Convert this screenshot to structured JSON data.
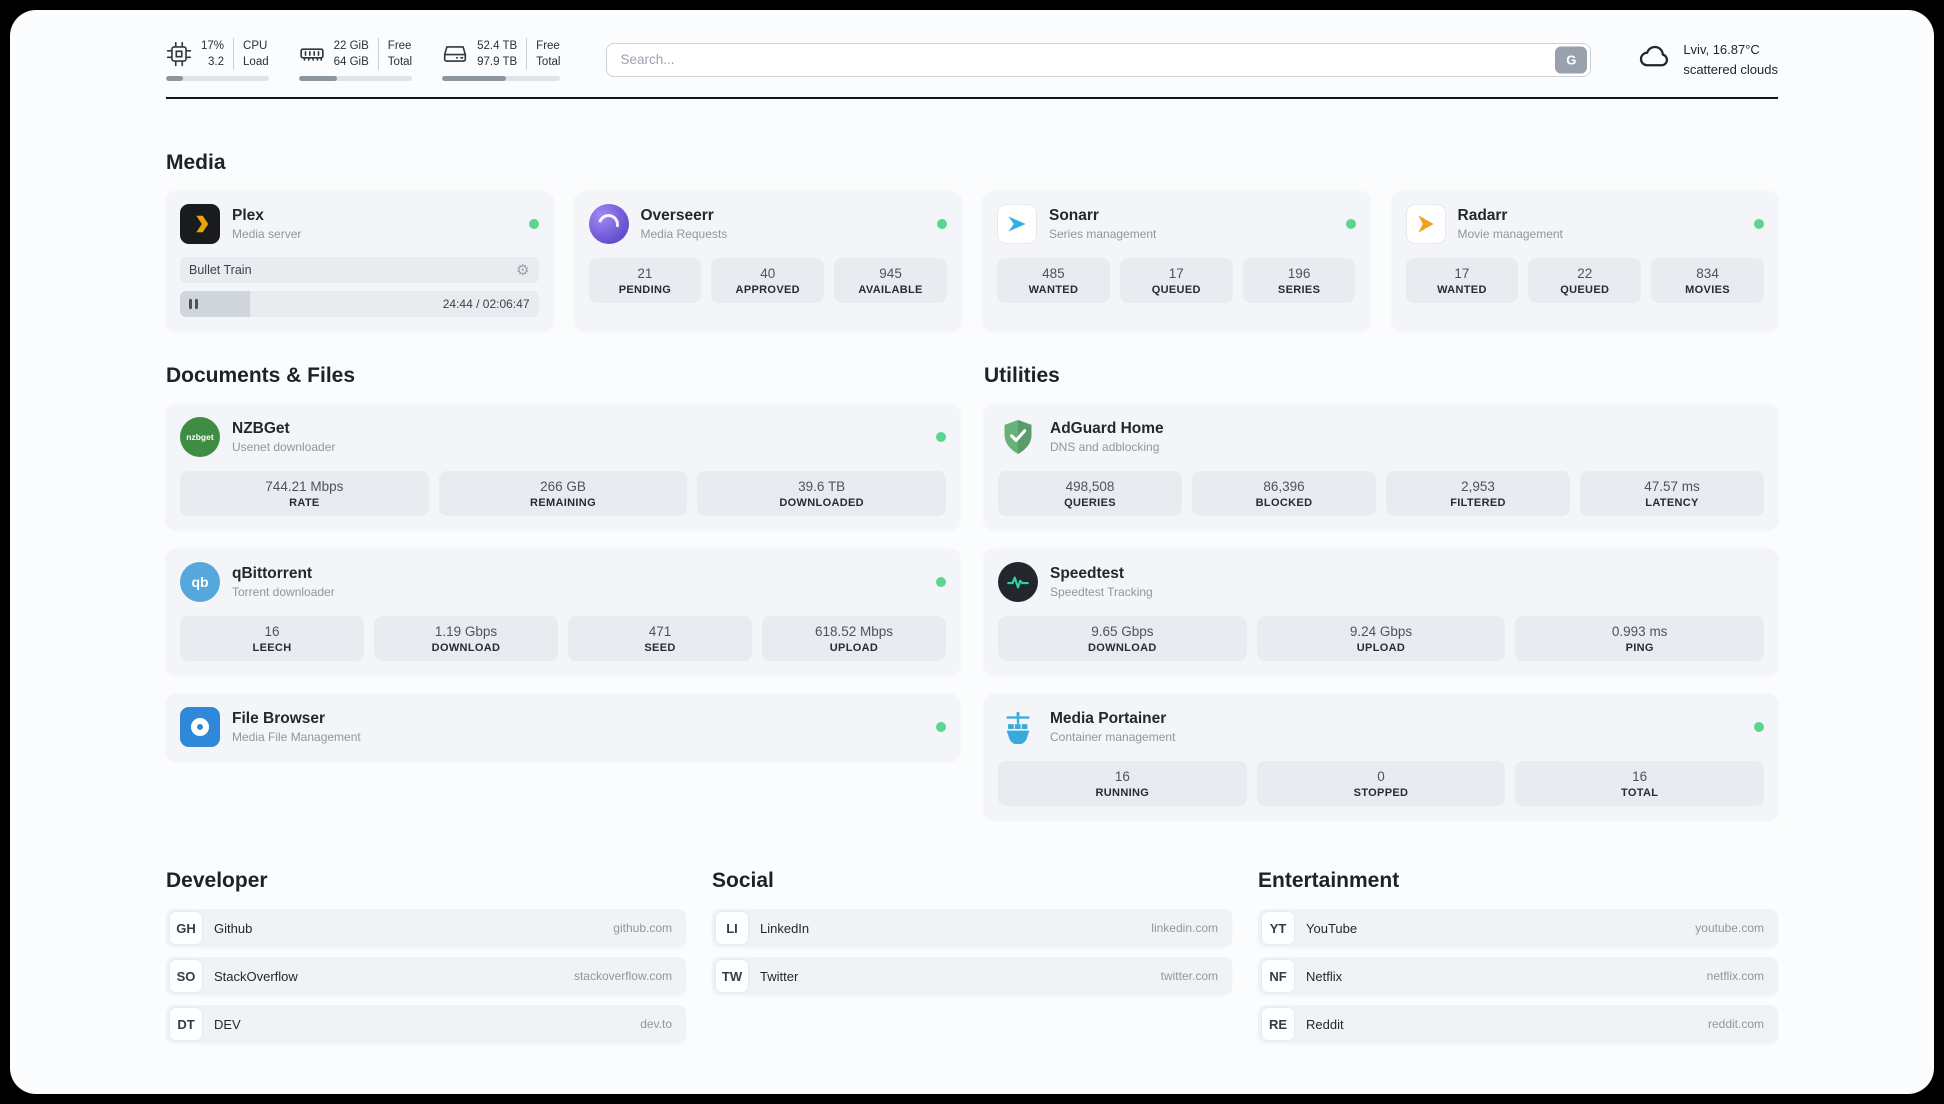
{
  "colors": {
    "status_green": "#5bd68f",
    "plex_yellow": "#e8a50b",
    "sonarr_blue": "#33b1e0",
    "radarr_orange": "#f0a11e",
    "nzbget_green": "#3f8c43",
    "qbittorrent_blue": "#56a8dc",
    "filebrowser_blue": "#2f89d8",
    "adguard_green": "#67b279",
    "speedtest_dark": "#22272e",
    "speedtest_green": "#2dd4a0",
    "portainer_blue": "#39a9dc",
    "overseerr_purple": "#6e58d8"
  },
  "topbar": {
    "monitors": [
      {
        "value": "17%",
        "sub": "3.2",
        "label_top": "CPU",
        "label_bottom": "Load",
        "progress": 17
      },
      {
        "value": "22 GiB",
        "sub": "64 GiB",
        "label_top": "Free",
        "label_bottom": "Total",
        "progress": 34
      },
      {
        "value": "52.4 TB",
        "sub": "97.9 TB",
        "label_top": "Free",
        "label_bottom": "Total",
        "progress": 54
      }
    ],
    "search": {
      "placeholder": "Search...",
      "button_label": "G"
    },
    "weather": {
      "location": "Lviv, 16.87°C",
      "condition": "scattered clouds"
    }
  },
  "sections": {
    "media": {
      "title": "Media",
      "plex": {
        "title": "Plex",
        "subtitle": "Media server",
        "now_playing": "Bullet Train",
        "time": "24:44 / 02:06:47",
        "progress": 19.5
      },
      "overseerr": {
        "title": "Overseerr",
        "subtitle": "Media Requests",
        "stats": [
          {
            "value": "21",
            "label": "PENDING"
          },
          {
            "value": "40",
            "label": "APPROVED"
          },
          {
            "value": "945",
            "label": "AVAILABLE"
          }
        ]
      },
      "sonarr": {
        "title": "Sonarr",
        "subtitle": "Series management",
        "stats": [
          {
            "value": "485",
            "label": "WANTED"
          },
          {
            "value": "17",
            "label": "QUEUED"
          },
          {
            "value": "196",
            "label": "SERIES"
          }
        ]
      },
      "radarr": {
        "title": "Radarr",
        "subtitle": "Movie management",
        "stats": [
          {
            "value": "17",
            "label": "WANTED"
          },
          {
            "value": "22",
            "label": "QUEUED"
          },
          {
            "value": "834",
            "label": "MOVIES"
          }
        ]
      }
    },
    "documents": {
      "title": "Documents & Files",
      "nzbget": {
        "title": "NZBGet",
        "subtitle": "Usenet downloader",
        "stats": [
          {
            "value": "744.21 Mbps",
            "label": "RATE"
          },
          {
            "value": "266 GB",
            "label": "REMAINING"
          },
          {
            "value": "39.6 TB",
            "label": "DOWNLOADED"
          }
        ]
      },
      "qbittorrent": {
        "title": "qBittorrent",
        "subtitle": "Torrent downloader",
        "stats": [
          {
            "value": "16",
            "label": "LEECH"
          },
          {
            "value": "1.19 Gbps",
            "label": "DOWNLOAD"
          },
          {
            "value": "471",
            "label": "SEED"
          },
          {
            "value": "618.52 Mbps",
            "label": "UPLOAD"
          }
        ]
      },
      "filebrowser": {
        "title": "File Browser",
        "subtitle": "Media File Management"
      }
    },
    "utilities": {
      "title": "Utilities",
      "adguard": {
        "title": "AdGuard Home",
        "subtitle": "DNS and adblocking",
        "stats": [
          {
            "value": "498,508",
            "label": "QUERIES"
          },
          {
            "value": "86,396",
            "label": "BLOCKED"
          },
          {
            "value": "2,953",
            "label": "FILTERED"
          },
          {
            "value": "47.57 ms",
            "label": "LATENCY"
          }
        ]
      },
      "speedtest": {
        "title": "Speedtest",
        "subtitle": "Speedtest Tracking",
        "stats": [
          {
            "value": "9.65 Gbps",
            "label": "DOWNLOAD"
          },
          {
            "value": "9.24 Gbps",
            "label": "UPLOAD"
          },
          {
            "value": "0.993 ms",
            "label": "PING"
          }
        ]
      },
      "portainer": {
        "title": "Media Portainer",
        "subtitle": "Container management",
        "stats": [
          {
            "value": "16",
            "label": "RUNNING"
          },
          {
            "value": "0",
            "label": "STOPPED"
          },
          {
            "value": "16",
            "label": "TOTAL"
          }
        ]
      }
    }
  },
  "bookmarks": [
    {
      "title": "Developer",
      "links": [
        {
          "abbr": "GH",
          "name": "Github",
          "url": "github.com"
        },
        {
          "abbr": "SO",
          "name": "StackOverflow",
          "url": "stackoverflow.com"
        },
        {
          "abbr": "DT",
          "name": "DEV",
          "url": "dev.to"
        }
      ]
    },
    {
      "title": "Social",
      "links": [
        {
          "abbr": "LI",
          "name": "LinkedIn",
          "url": "linkedin.com"
        },
        {
          "abbr": "TW",
          "name": "Twitter",
          "url": "twitter.com"
        }
      ]
    },
    {
      "title": "Entertainment",
      "links": [
        {
          "abbr": "YT",
          "name": "YouTube",
          "url": "youtube.com"
        },
        {
          "abbr": "NF",
          "name": "Netflix",
          "url": "netflix.com"
        },
        {
          "abbr": "RE",
          "name": "Reddit",
          "url": "reddit.com"
        }
      ]
    }
  ],
  "icons": {
    "gear_glyph": "⚙"
  }
}
